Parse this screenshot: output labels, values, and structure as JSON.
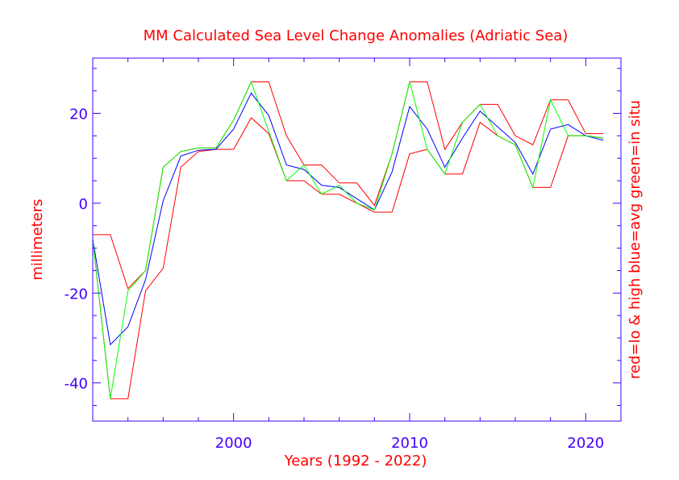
{
  "chart_data": {
    "type": "line",
    "title": "MM Calculated Sea Level Change Anomalies (Adriatic Sea)",
    "xlabel": "Years (1992 - 2022)",
    "ylabel": "millimeters",
    "right_label": "red=lo & high  blue=avg  green=in situ",
    "xlim": [
      1992,
      2022
    ],
    "ylim": [
      -48.5,
      32.3
    ],
    "x_ticks": [
      2000,
      2010,
      2020
    ],
    "x_tick_labels": [
      "2000",
      "2010",
      "2020"
    ],
    "y_ticks": [
      -40,
      -20,
      0,
      20
    ],
    "y_tick_labels": [
      "-40",
      "-20",
      "0",
      "20"
    ],
    "grid": false,
    "colors": {
      "text": "#ff0000",
      "axis": "#4400ff",
      "low": "#ff0000",
      "high": "#ff0000",
      "avg": "#0000ff",
      "in_situ": "#00ff00"
    },
    "series": [
      {
        "key": "low",
        "color": "#ff0000",
        "points": [
          [
            1992,
            -8.0
          ],
          [
            1993,
            -43.5
          ],
          [
            1994,
            -43.5
          ],
          [
            1995,
            -19.5
          ],
          [
            1996,
            -14.5
          ],
          [
            1997,
            8.0
          ],
          [
            1998,
            11.5
          ],
          [
            1999,
            12.0
          ],
          [
            2000,
            12.0
          ],
          [
            2001,
            19.0
          ],
          [
            2002,
            15.5
          ],
          [
            2003,
            5.0
          ],
          [
            2004,
            5.0
          ],
          [
            2005,
            2.0
          ],
          [
            2006,
            2.0
          ],
          [
            2007,
            0.0
          ],
          [
            2008,
            -2.0
          ],
          [
            2009,
            -2.0
          ],
          [
            2010,
            11.0
          ],
          [
            2011,
            12.0
          ],
          [
            2012,
            6.5
          ],
          [
            2013,
            6.5
          ],
          [
            2014,
            18.0
          ],
          [
            2015,
            15.0
          ],
          [
            2016,
            13.0
          ],
          [
            2017,
            3.5
          ],
          [
            2018,
            3.5
          ],
          [
            2019,
            15.0
          ],
          [
            2020,
            15.0
          ],
          [
            2021,
            14.5
          ]
        ]
      },
      {
        "key": "high",
        "color": "#ff0000",
        "points": [
          [
            1992,
            -7.0
          ],
          [
            1993,
            -7.0
          ],
          [
            1994,
            -19.0
          ],
          [
            1995,
            -15.0
          ],
          [
            1996,
            8.0
          ],
          [
            1997,
            11.5
          ],
          [
            1998,
            12.3
          ],
          [
            1999,
            12.3
          ],
          [
            2000,
            18.5
          ],
          [
            2001,
            27.0
          ],
          [
            2002,
            27.0
          ],
          [
            2003,
            15.0
          ],
          [
            2004,
            8.5
          ],
          [
            2005,
            8.5
          ],
          [
            2006,
            4.5
          ],
          [
            2007,
            4.5
          ],
          [
            2008,
            -0.5
          ],
          [
            2009,
            11.0
          ],
          [
            2010,
            27.0
          ],
          [
            2011,
            27.0
          ],
          [
            2012,
            12.0
          ],
          [
            2013,
            18.0
          ],
          [
            2014,
            22.0
          ],
          [
            2015,
            22.0
          ],
          [
            2016,
            15.0
          ],
          [
            2017,
            13.0
          ],
          [
            2018,
            23.0
          ],
          [
            2019,
            23.0
          ],
          [
            2020,
            15.5
          ],
          [
            2021,
            15.5
          ]
        ]
      },
      {
        "key": "avg",
        "color": "#0000ff",
        "points": [
          [
            1992,
            -8.0
          ],
          [
            1993,
            -31.5
          ],
          [
            1994,
            -27.5
          ],
          [
            1995,
            -17.0
          ],
          [
            1996,
            0.5
          ],
          [
            1997,
            10.5
          ],
          [
            1998,
            11.8
          ],
          [
            1999,
            12.0
          ],
          [
            2000,
            16.5
          ],
          [
            2001,
            24.5
          ],
          [
            2002,
            19.5
          ],
          [
            2003,
            8.5
          ],
          [
            2004,
            7.5
          ],
          [
            2005,
            4.0
          ],
          [
            2006,
            3.5
          ],
          [
            2007,
            1.0
          ],
          [
            2008,
            -1.5
          ],
          [
            2009,
            7.0
          ],
          [
            2010,
            21.5
          ],
          [
            2011,
            16.5
          ],
          [
            2012,
            8.0
          ],
          [
            2013,
            14.5
          ],
          [
            2014,
            20.5
          ],
          [
            2015,
            17.0
          ],
          [
            2016,
            13.5
          ],
          [
            2017,
            6.5
          ],
          [
            2018,
            16.5
          ],
          [
            2019,
            17.5
          ],
          [
            2020,
            15.0
          ],
          [
            2021,
            14.0
          ]
        ]
      },
      {
        "key": "in_situ",
        "color": "#00ff00",
        "points": [
          [
            1992,
            -8.0
          ],
          [
            1993,
            -43.5
          ],
          [
            1994,
            -19.5
          ],
          [
            1995,
            -15.0
          ],
          [
            1996,
            8.0
          ],
          [
            1997,
            11.5
          ],
          [
            1998,
            12.3
          ],
          [
            1999,
            12.3
          ],
          [
            2000,
            18.5
          ],
          [
            2001,
            27.0
          ],
          [
            2002,
            16.0
          ],
          [
            2003,
            5.0
          ],
          [
            2004,
            8.5
          ],
          [
            2005,
            2.0
          ],
          [
            2006,
            4.0
          ],
          [
            2007,
            0.0
          ],
          [
            2008,
            -1.5
          ],
          [
            2009,
            11.0
          ],
          [
            2010,
            27.0
          ],
          [
            2011,
            12.0
          ],
          [
            2012,
            6.5
          ],
          [
            2013,
            18.0
          ],
          [
            2014,
            22.0
          ],
          [
            2015,
            15.0
          ],
          [
            2016,
            13.0
          ],
          [
            2017,
            3.5
          ],
          [
            2018,
            23.0
          ],
          [
            2019,
            15.0
          ],
          [
            2020,
            15.0
          ],
          [
            2021,
            14.5
          ]
        ]
      }
    ]
  }
}
